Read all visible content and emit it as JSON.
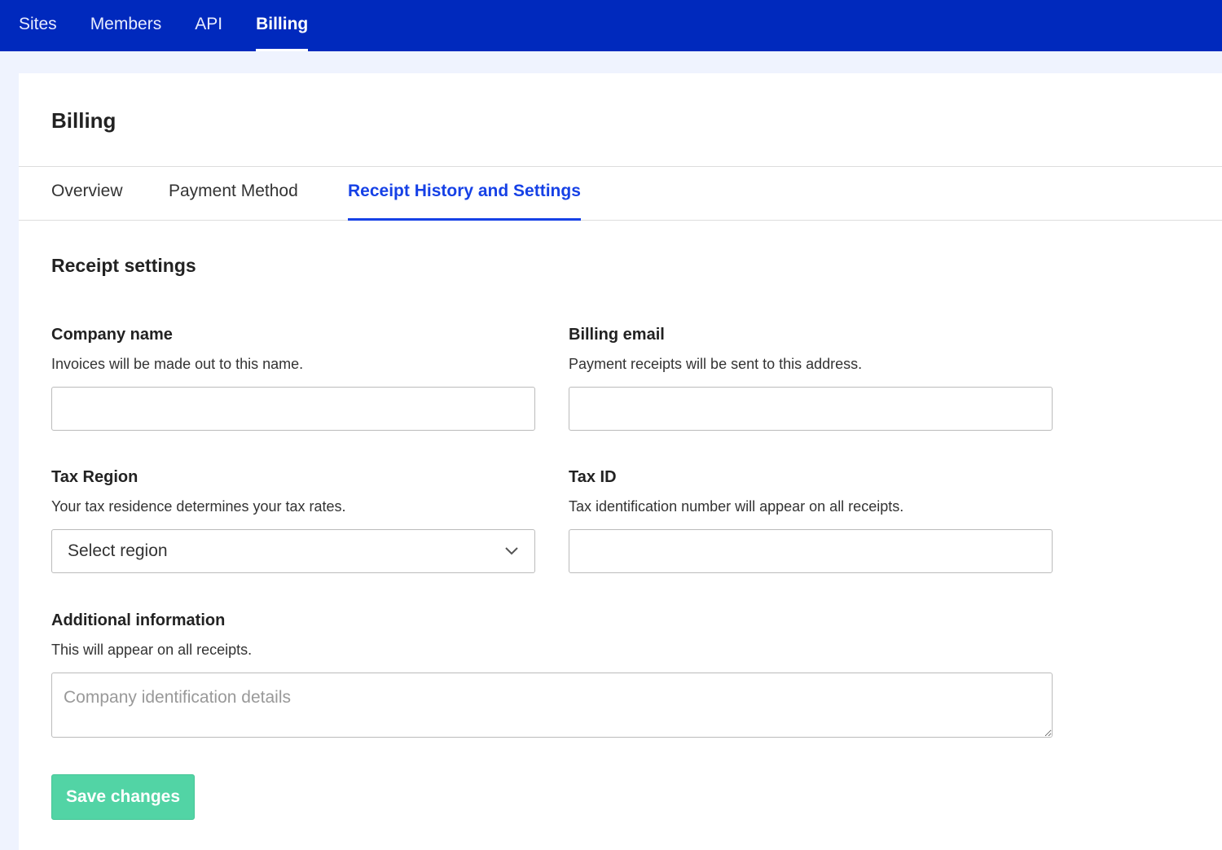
{
  "topnav": {
    "items": [
      {
        "label": "Sites"
      },
      {
        "label": "Members"
      },
      {
        "label": "API"
      },
      {
        "label": "Billing",
        "active": true
      }
    ]
  },
  "page": {
    "title": "Billing"
  },
  "tabs": [
    {
      "label": "Overview"
    },
    {
      "label": "Payment Method"
    },
    {
      "label": "Receipt History and Settings",
      "active": true
    }
  ],
  "section": {
    "title": "Receipt settings"
  },
  "form": {
    "company_name": {
      "label": "Company name",
      "help": "Invoices will be made out to this name.",
      "value": ""
    },
    "billing_email": {
      "label": "Billing email",
      "help": "Payment receipts will be sent to this address.",
      "value": ""
    },
    "tax_region": {
      "label": "Tax Region",
      "help": "Your tax residence determines your tax rates.",
      "selected": "Select region"
    },
    "tax_id": {
      "label": "Tax ID",
      "help": "Tax identification number will appear on all receipts.",
      "value": ""
    },
    "additional": {
      "label": "Additional information",
      "help": "This will appear on all receipts.",
      "placeholder": "Company identification details"
    },
    "save_label": "Save changes"
  },
  "colors": {
    "nav": "#0029bd",
    "accent": "#1641e6",
    "save": "#52d4a5"
  }
}
